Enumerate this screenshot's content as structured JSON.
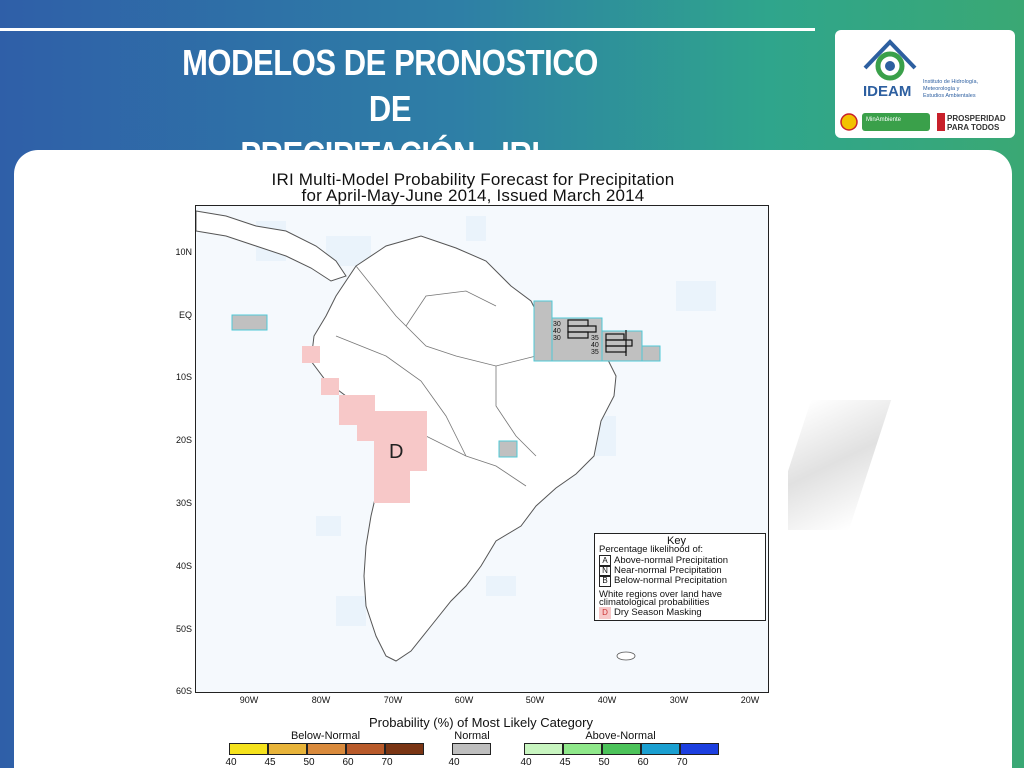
{
  "slide": {
    "title_line1": "MODELOS DE PRONOSTICO DE",
    "title_line2": "PRECIPITACIÓN - IRI"
  },
  "logo": {
    "brand": "IDEAM",
    "brand_sub_1": "Instituto de Hidrología,",
    "brand_sub_2": "Meteorología y",
    "brand_sub_3": "Estudios Ambientales",
    "ministry": "MinAmbiente",
    "slogan_1": "PROSPERIDAD",
    "slogan_2": "PARA TODOS",
    "colors": {
      "blue": "#2d5fa0",
      "green": "#3aa04a",
      "red": "#c8202a",
      "yellow": "#f2c200"
    }
  },
  "figure": {
    "title_line1": "IRI Multi-Model Probability Forecast for Precipitation",
    "title_line2": "for April-May-June 2014, Issued March 2014",
    "lat_labels": [
      "10N",
      "EQ",
      "10S",
      "20S",
      "30S",
      "40S",
      "50S",
      "60S"
    ],
    "lon_labels": [
      "90W",
      "80W",
      "70W",
      "60W",
      "50W",
      "40W",
      "30W",
      "20W"
    ],
    "dry_mask_letter": "D",
    "box_labels": [
      "30",
      "40",
      "30",
      "35",
      "40",
      "35"
    ],
    "key": {
      "title": "Key",
      "subtitle": "Percentage likelihood of:",
      "items": [
        {
          "letter": "A",
          "label": "Above-normal Precipitation"
        },
        {
          "letter": "N",
          "label": "Near-normal Precipitation"
        },
        {
          "letter": "B",
          "label": "Below-normal Precipitation"
        }
      ],
      "note_line1": "White regions over land have",
      "note_line2": "climatological probabilities",
      "dry_letter": "D",
      "dry_label": "Dry Season Masking"
    },
    "legend": {
      "title": "Probability (%) of Most Likely Category",
      "below_label": "Below-Normal",
      "normal_label": "Normal",
      "above_label": "Above-Normal",
      "below_ticks": [
        "40",
        "45",
        "50",
        "60",
        "70"
      ],
      "normal_ticks": [
        "40"
      ],
      "above_ticks": [
        "40",
        "45",
        "50",
        "60",
        "70"
      ],
      "below_colors": [
        "#f5e21c",
        "#e8b43a",
        "#d98a3c",
        "#b85a2a",
        "#7a3514"
      ],
      "normal_color": "#bebebe",
      "above_colors": [
        "#c8f5c0",
        "#8fe88a",
        "#4cc35a",
        "#1a9fd0",
        "#1c3fe0"
      ]
    },
    "colors": {
      "ocean": "#f5f9fd",
      "land_outline": "#555555",
      "normal_fill": "#c0c0c0",
      "normal_edge": "#4fc9d6",
      "dry_fill": "#f7c8c8",
      "sea_mask": "#eaf3fb"
    }
  }
}
